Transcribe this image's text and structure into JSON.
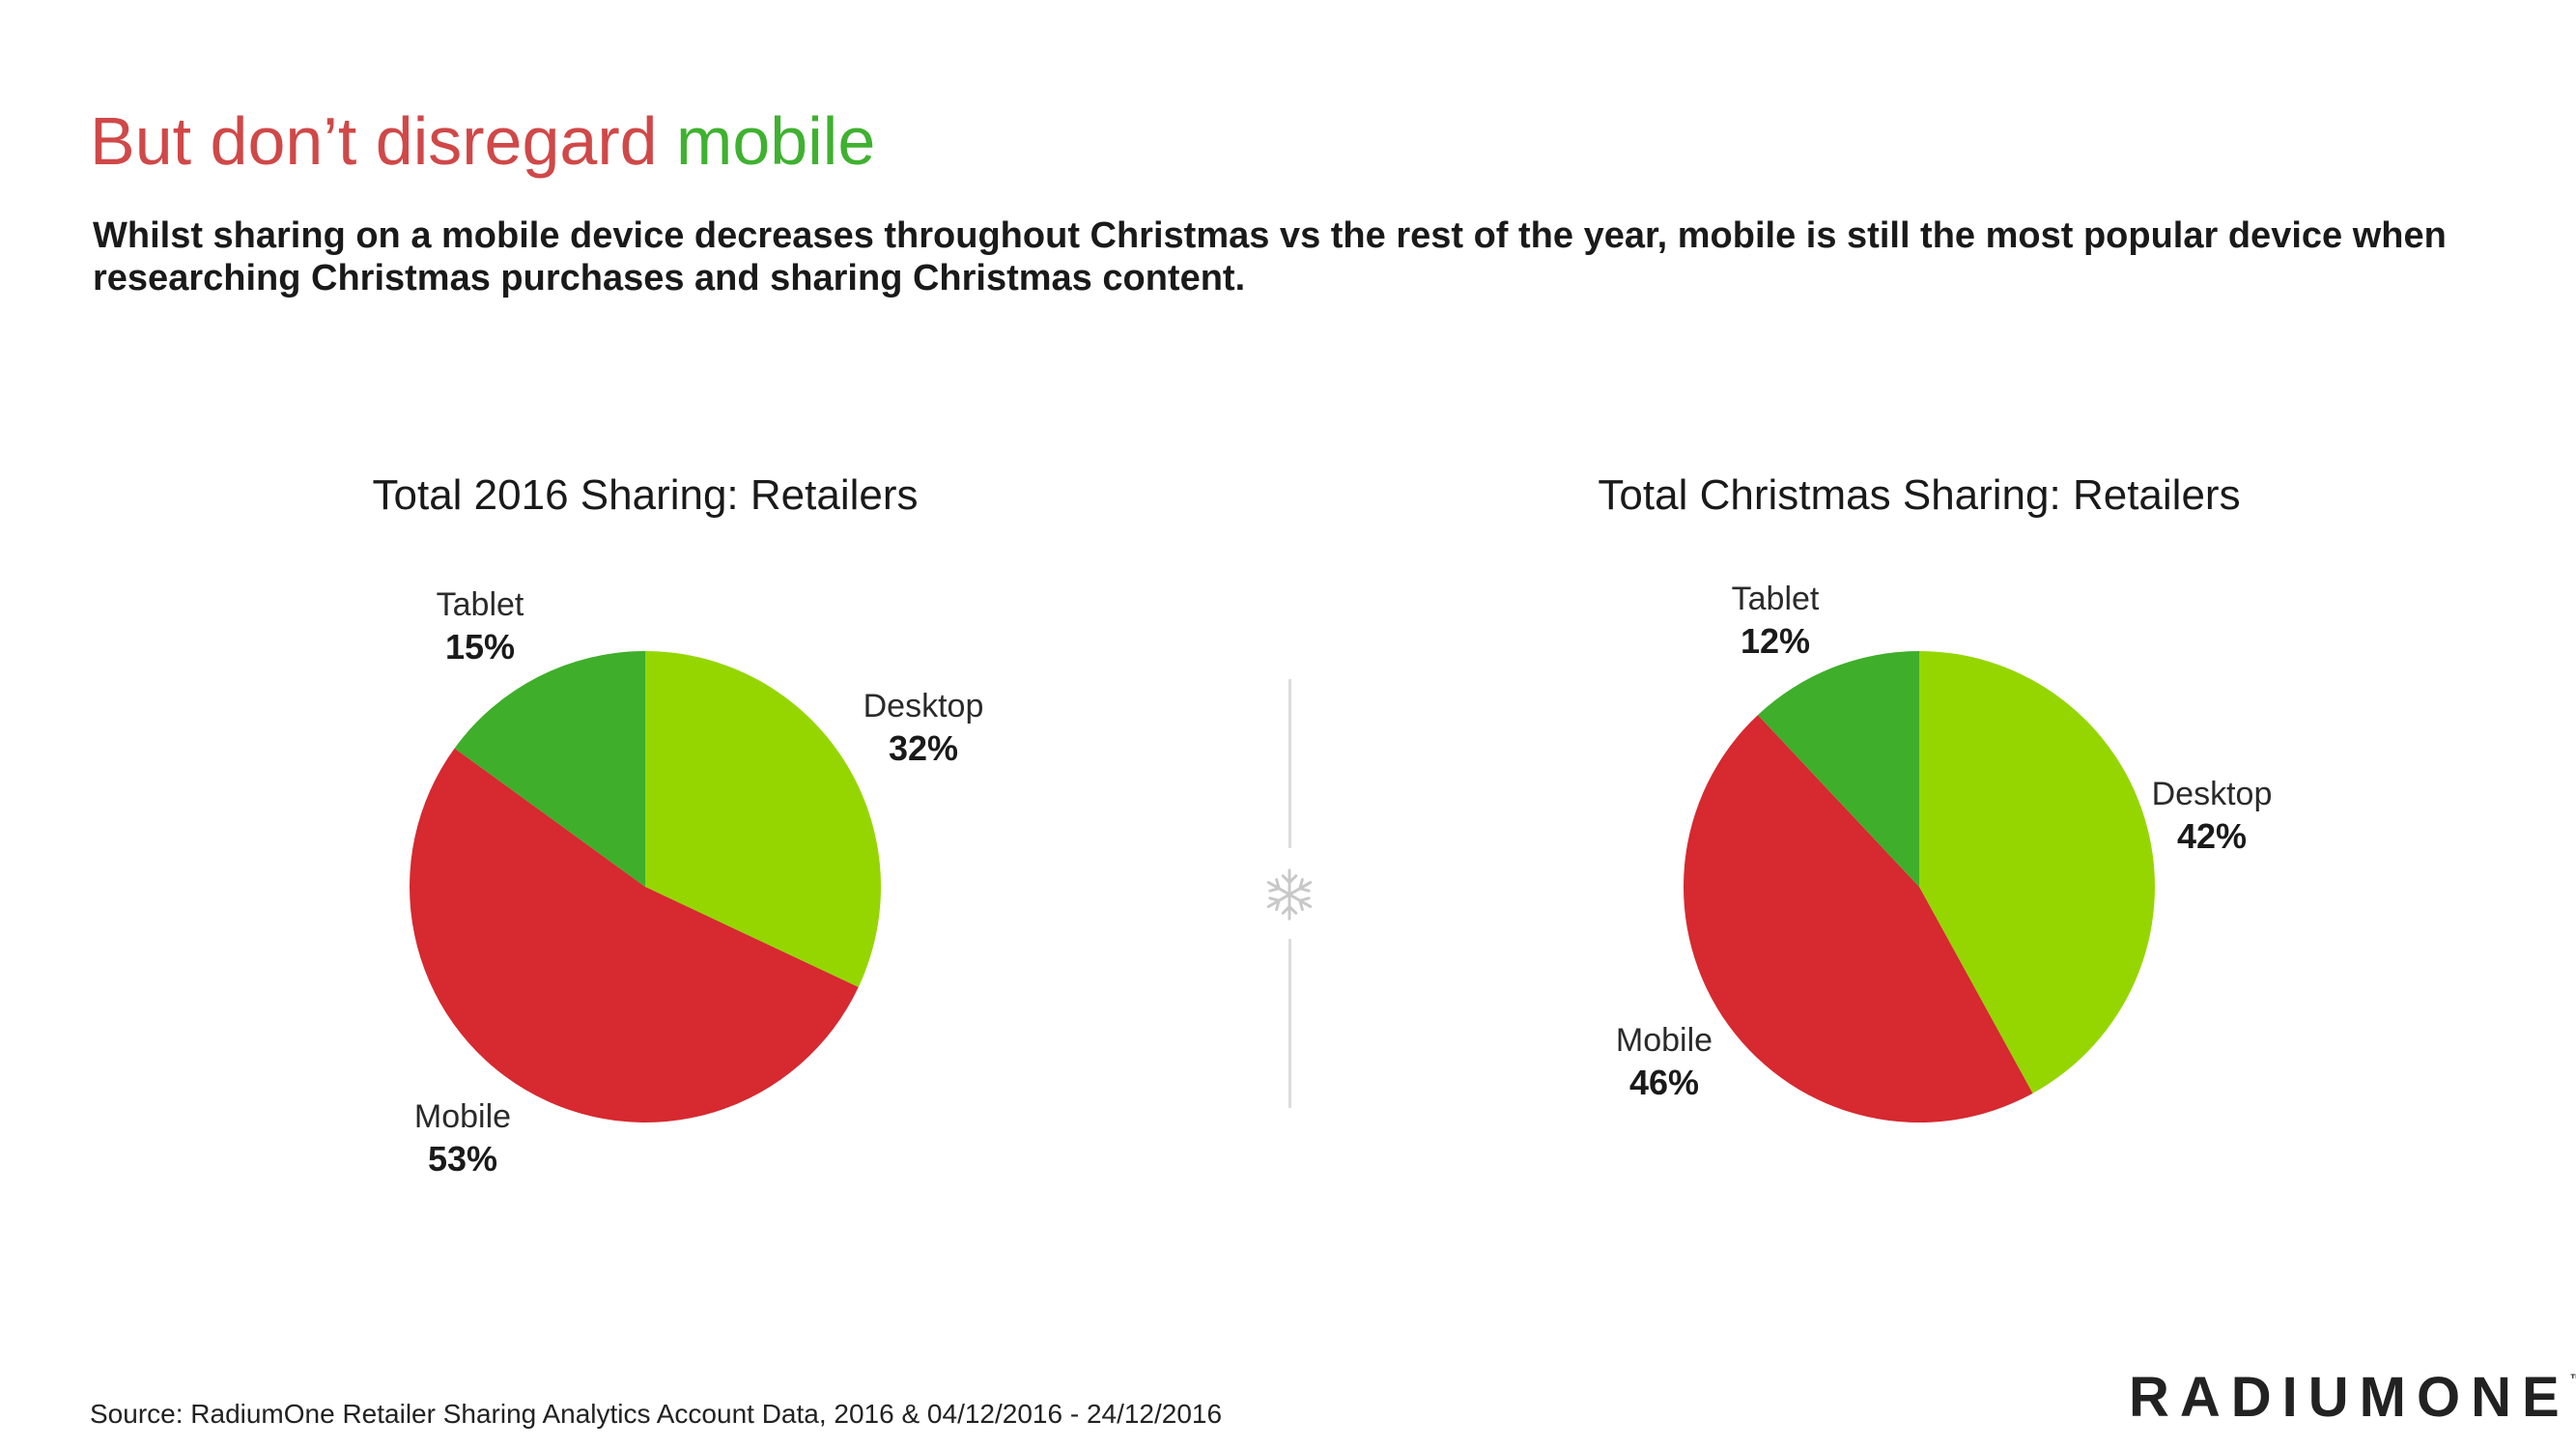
{
  "headline": {
    "part1": "But don’t disregard",
    "part2": "mobile"
  },
  "subtitle": "Whilst sharing on a mobile device decreases throughout Christmas vs the rest of the year, mobile is still the most popular device when researching Christmas purchases and sharing Christmas content.",
  "chart_data": [
    {
      "type": "pie",
      "title": "Total 2016 Sharing: Retailers",
      "slices": [
        {
          "label": "Desktop",
          "value": 32,
          "display": "32%",
          "color": "#95d600"
        },
        {
          "label": "Mobile",
          "value": 53,
          "display": "53%",
          "color": "#d62930"
        },
        {
          "label": "Tablet",
          "value": 15,
          "display": "15%",
          "color": "#3fae2a"
        }
      ]
    },
    {
      "type": "pie",
      "title": "Total Christmas Sharing: Retailers",
      "slices": [
        {
          "label": "Desktop",
          "value": 42,
          "display": "42%",
          "color": "#95d600"
        },
        {
          "label": "Mobile",
          "value": 46,
          "display": "46%",
          "color": "#d62930"
        },
        {
          "label": "Tablet",
          "value": 12,
          "display": "12%",
          "color": "#3fae2a"
        }
      ]
    }
  ],
  "divider": {
    "icon": "snowflake-icon",
    "color": "#c8c8c8"
  },
  "footer": {
    "source": "Source: RadiumOne Retailer Sharing Analytics Account Data, 2016 & 04/12/2016 - 24/12/2016",
    "logo": "RADIUMONE",
    "logo_mark": "™"
  }
}
